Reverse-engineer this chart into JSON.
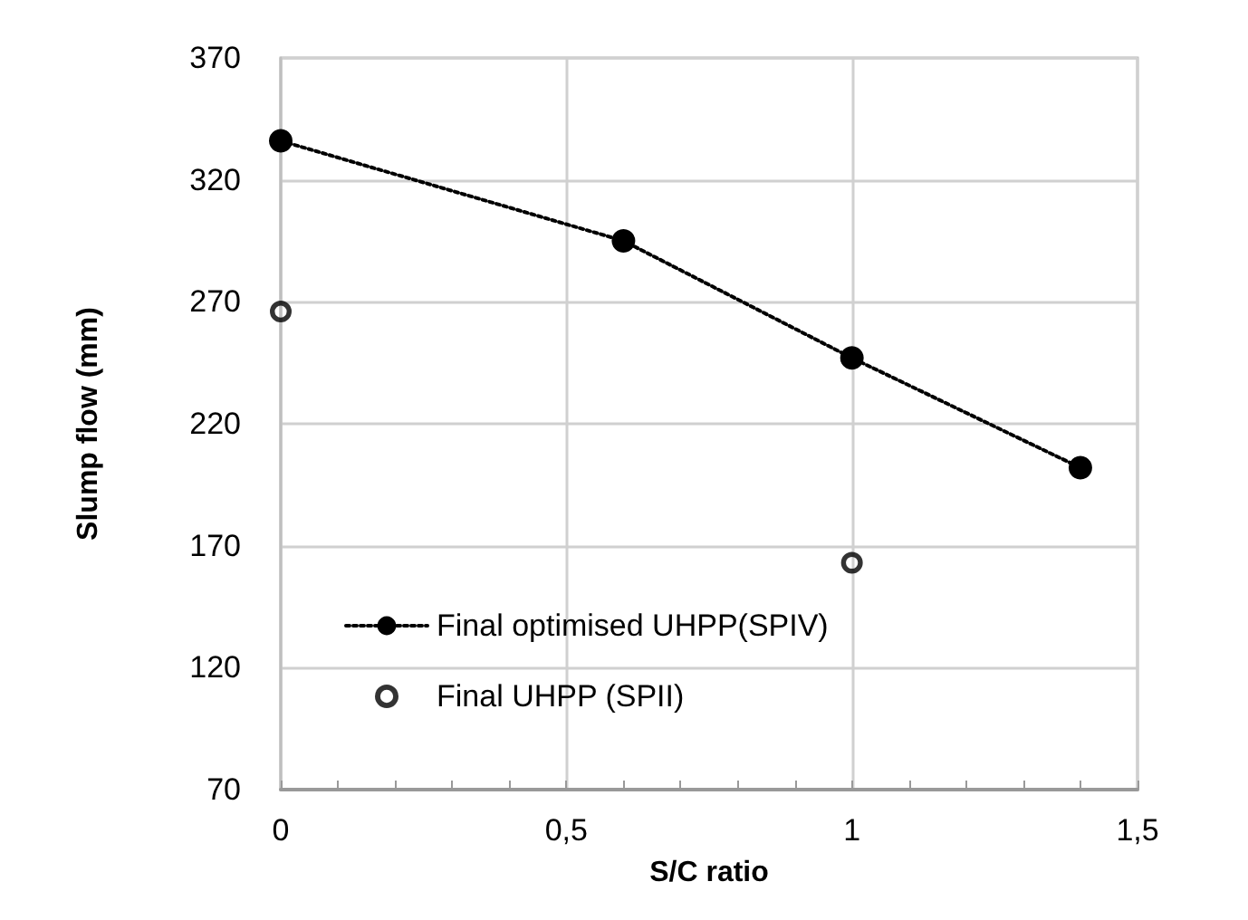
{
  "chart_data": {
    "type": "line",
    "xlabel": "S/C ratio",
    "ylabel": "Slump flow (mm)",
    "xlim": [
      0,
      1.5
    ],
    "xticks": [
      0,
      {
        "value": 0.1,
        "label": null
      },
      {
        "value": 0.2,
        "label": null
      },
      {
        "value": 0.3,
        "label": null
      },
      {
        "value": 0.4,
        "label": null
      },
      {
        "value": 0.5,
        "label": "0,5"
      },
      {
        "value": 0.6,
        "label": null
      },
      {
        "value": 0.7,
        "label": null
      },
      {
        "value": 0.8,
        "label": null
      },
      {
        "value": 0.9,
        "label": null
      },
      1,
      {
        "value": 1.1,
        "label": null
      },
      {
        "value": 1.2,
        "label": null
      },
      {
        "value": 1.3,
        "label": null
      },
      {
        "value": 1.4,
        "label": null
      },
      {
        "value": 1.5,
        "label": "1,5"
      }
    ],
    "ylim": [
      70,
      370
    ],
    "yticks": [
      70,
      120,
      170,
      220,
      270,
      320,
      370
    ],
    "grid": true,
    "legend": "bottom left",
    "marker": "circle",
    "series": [
      {
        "name": "Final optimised UHPP(SPIV)",
        "type": "line",
        "line_style": "dotted",
        "color": "#000000",
        "x": [
          0,
          0.6,
          1,
          1.4
        ],
        "values": [
          336,
          295,
          247,
          202
        ]
      },
      {
        "name": "Final UHPP (SPII)",
        "type": "scatter",
        "color": "#000000",
        "x": [
          0,
          1
        ],
        "values": [
          266,
          163
        ]
      }
    ]
  }
}
